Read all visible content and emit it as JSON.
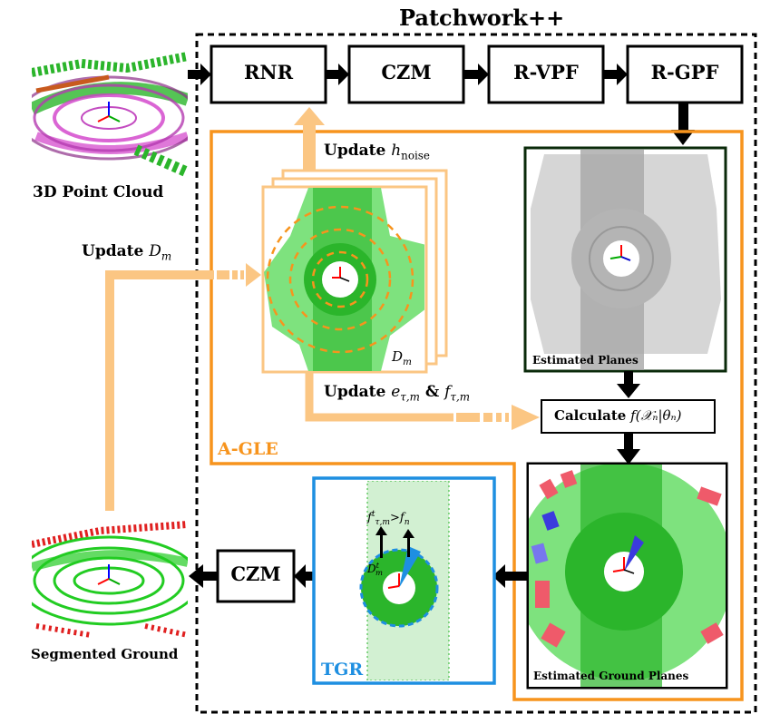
{
  "title": "Patchwork++",
  "pipeline": {
    "stages": [
      "RNR",
      "CZM",
      "R-VPF",
      "R-GPF"
    ]
  },
  "inputs": {
    "point_cloud_caption": "3D Point Cloud",
    "segmented_caption": "Segmented Ground"
  },
  "agle": {
    "label": "A-GLE",
    "update_noise_prefix": "Update",
    "update_noise_math": "h",
    "update_noise_sub": "noise",
    "update_dm_prefix": "Update",
    "update_dm_math": "D",
    "update_dm_sub": "m",
    "update_e_prefix": "Update",
    "update_e_math": "e",
    "update_e_sub": "τ,m",
    "update_e_amp": "&",
    "update_f_math": "f",
    "update_f_sub": "τ,m",
    "dm_label_math": "D",
    "dm_label_sub": "m",
    "estimated_planes": "Estimated Planes",
    "calculate_prefix": "Calculate",
    "calculate_math": "f(𝒳ₙ|θₙ)",
    "estimated_ground_planes": "Estimated Ground Planes"
  },
  "tgr": {
    "label": "TGR",
    "cond_left": "f",
    "cond_left_sup": "t",
    "cond_left_sub": "τ,m",
    "cond_op": ">",
    "cond_right": "f",
    "cond_right_sub": "n",
    "dm_math": "D",
    "dm_sup": "t",
    "dm_sub": "m"
  },
  "final_stage": "CZM",
  "colors": {
    "orange": "#f7941d",
    "light_orange": "#fbc683",
    "blue": "#1e8fe1",
    "green": "#2bb52b",
    "light_green": "#7ee27e",
    "gray": "#b4b4b4"
  }
}
